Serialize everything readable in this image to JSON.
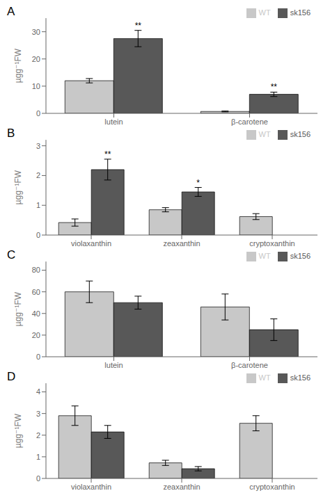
{
  "chart_data": [
    {
      "type": "bar",
      "title": "A",
      "categories": [
        "lutein",
        "β-carotene"
      ],
      "series": [
        {
          "name": "WT",
          "color": "#c8c8c8",
          "values": [
            12.0,
            0.7
          ],
          "errors": [
            0.8,
            0.15
          ]
        },
        {
          "name": "sk156",
          "color": "#585858",
          "values": [
            27.5,
            7.0
          ],
          "errors": [
            3.0,
            0.8
          ]
        }
      ],
      "ylabel": "µgg⁻¹FW",
      "ylim": [
        0,
        35
      ],
      "yticks": [
        0,
        10,
        20,
        30
      ],
      "annotations": [
        {
          "category": "lutein",
          "series": "sk156",
          "text": "**"
        },
        {
          "category": "β-carotene",
          "series": "sk156",
          "text": "**"
        }
      ],
      "legend": "upper right",
      "grid": false
    },
    {
      "type": "bar",
      "title": "B",
      "categories": [
        "violaxanthin",
        "zeaxanthin",
        "cryptoxanthin"
      ],
      "series": [
        {
          "name": "WT",
          "color": "#c8c8c8",
          "values": [
            0.42,
            0.85,
            0.62
          ],
          "errors": [
            0.12,
            0.07,
            0.1
          ]
        },
        {
          "name": "sk156",
          "color": "#585858",
          "values": [
            2.2,
            1.45,
            null
          ],
          "errors": [
            0.35,
            0.15,
            null
          ]
        }
      ],
      "ylabel": "µgg⁻¹FW",
      "ylim": [
        0,
        3.2
      ],
      "yticks": [
        0,
        1,
        2,
        3
      ],
      "annotations": [
        {
          "category": "violaxanthin",
          "series": "sk156",
          "text": "**"
        },
        {
          "category": "zeaxanthin",
          "series": "sk156",
          "text": "*"
        }
      ],
      "legend": "upper right",
      "grid": false
    },
    {
      "type": "bar",
      "title": "C",
      "categories": [
        "lutein",
        "β-carotene"
      ],
      "series": [
        {
          "name": "WT",
          "color": "#c8c8c8",
          "values": [
            60.0,
            46.0
          ],
          "errors": [
            10.0,
            12.0
          ]
        },
        {
          "name": "sk156",
          "color": "#585858",
          "values": [
            50.0,
            25.0
          ],
          "errors": [
            6.0,
            10.0
          ]
        }
      ],
      "ylabel": "µgg⁻¹FW",
      "ylim": [
        0,
        88
      ],
      "yticks": [
        0,
        20,
        40,
        60,
        80
      ],
      "legend": "upper right",
      "grid": false
    },
    {
      "type": "bar",
      "title": "D",
      "categories": [
        "violaxanthin",
        "zeaxanthin",
        "cryptoxanthin"
      ],
      "series": [
        {
          "name": "WT",
          "color": "#c8c8c8",
          "values": [
            2.9,
            0.72,
            2.55
          ],
          "errors": [
            0.45,
            0.12,
            0.35
          ]
        },
        {
          "name": "sk156",
          "color": "#585858",
          "values": [
            2.15,
            0.45,
            null
          ],
          "errors": [
            0.3,
            0.1,
            null
          ]
        }
      ],
      "ylabel": "µgg⁻¹FW",
      "ylim": [
        0,
        4.4
      ],
      "yticks": [
        0,
        1,
        2,
        3,
        4
      ],
      "legend": "upper right",
      "grid": false
    }
  ]
}
